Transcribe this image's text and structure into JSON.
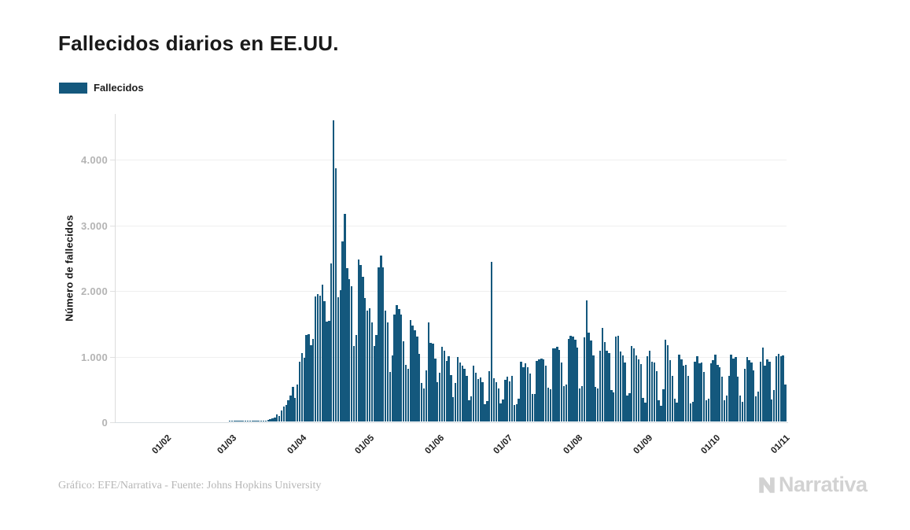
{
  "header": {
    "title": "Fallecidos diarios en EE.UU."
  },
  "legend": {
    "label": "Fallecidos"
  },
  "colors": {
    "bar": "#14587d",
    "grid": "#efefef",
    "axis": "#dcdcdc",
    "y_tick_text": "#b4b4b4",
    "x_tick_text": "#1f1f1f",
    "title_text": "#191919",
    "footer_text": "#b6b6b6",
    "watermark_text": "#d2d2d2"
  },
  "footer": {
    "credit": "Gráfico: EFE/Narrativa - Fuente: Johns Hopkins University",
    "watermark": "Narrativa"
  },
  "chart_data": {
    "type": "bar",
    "title": "Fallecidos diarios en EE.UU.",
    "xlabel": "",
    "ylabel": "Número de fallecidos",
    "legend_position": "top-left",
    "grid": "horizontal",
    "ylim": [
      0,
      4700
    ],
    "y_ticks": [
      {
        "value": 0,
        "label": "0"
      },
      {
        "value": 1000,
        "label": "1.000"
      },
      {
        "value": 2000,
        "label": "2.000"
      },
      {
        "value": 3000,
        "label": "3.000"
      },
      {
        "value": 4000,
        "label": "4.000"
      }
    ],
    "x_tick_labels": [
      "01/02",
      "01/03",
      "01/04",
      "01/05",
      "01/06",
      "01/07",
      "01/08",
      "01/09",
      "01/10",
      "01/11"
    ],
    "x_tick_indices": [
      22,
      51,
      82,
      112,
      143,
      173,
      204,
      235,
      265,
      296
    ],
    "series": [
      {
        "name": "Fallecidos",
        "color": "#14587d",
        "values": [
          0,
          0,
          0,
          0,
          0,
          0,
          0,
          0,
          0,
          0,
          0,
          0,
          0,
          0,
          0,
          0,
          0,
          0,
          0,
          0,
          0,
          0,
          0,
          0,
          0,
          0,
          0,
          0,
          0,
          0,
          0,
          0,
          0,
          0,
          0,
          0,
          0,
          0,
          0,
          0,
          0,
          0,
          0,
          0,
          0,
          0,
          0,
          0,
          0,
          0,
          1,
          1,
          6,
          4,
          3,
          4,
          3,
          4,
          3,
          4,
          5,
          6,
          8,
          6,
          10,
          11,
          18,
          23,
          41,
          49,
          57,
          111,
          80,
          164,
          225,
          246,
          327,
          401,
          525,
          363,
          558,
          912,
          1049,
          968,
          1321,
          1331,
          1165,
          1255,
          1906,
          1940,
          1922,
          2087,
          1830,
          1528,
          1535,
          2407,
          4591,
          3857,
          1891,
          1997,
          2740,
          3160,
          2333,
          2172,
          2065,
          1157,
          1317,
          2470,
          2390,
          2201,
          1883,
          1691,
          1722,
          1510,
          1154,
          1324,
          2350,
          2528,
          2353,
          1687,
          1510,
          750,
          1008,
          1630,
          1772,
          1715,
          1635,
          1218,
          865,
          808,
          1552,
          1461,
          1394,
          1292,
          1035,
          592,
          500,
          774,
          1505,
          1199,
          1193,
          960,
          605,
          743,
          1134,
          1083,
          921,
          994,
          709,
          373,
          589,
          978,
          905,
          846,
          800,
          700,
          320,
          380,
          851,
          738,
          652,
          673,
          600,
          267,
          306,
          769,
          2437,
          654,
          598,
          500,
          270,
          340,
          633,
          678,
          613,
          697,
          254,
          263,
          351,
          907,
          828,
          886,
          833,
          728,
          416,
          422,
          924,
          947,
          963,
          943,
          853,
          516,
          489,
          1111,
          1117,
          1135,
          1096,
          901,
          542,
          560,
          1258,
          1310,
          1294,
          1250,
          1130,
          501,
          534,
          1283,
          1841,
          1360,
          1230,
          1003,
          529,
          505,
          1083,
          1431,
          1210,
          1075,
          1047,
          479,
          446,
          1297,
          1306,
          1070,
          1003,
          895,
          399,
          428,
          1147,
          1120,
          1006,
          946,
          870,
          362,
          288,
          998,
          1077,
          912,
          896,
          770,
          320,
          244,
          495,
          1250,
          1164,
          935,
          690,
          350,
          290,
          1022,
          946,
          850,
          866,
          700,
          270,
          300,
          917,
          1001,
          890,
          900,
          760,
          320,
          350,
          890,
          931,
          1020,
          860,
          830,
          680,
          320,
          400,
          700,
          1020,
          960,
          980,
          680,
          390,
          300,
          800,
          987,
          930,
          900,
          780,
          388,
          450,
          910,
          1125,
          850,
          950,
          910,
          340,
          480,
          990,
          1030,
          990,
          1010,
          560
        ]
      }
    ]
  }
}
